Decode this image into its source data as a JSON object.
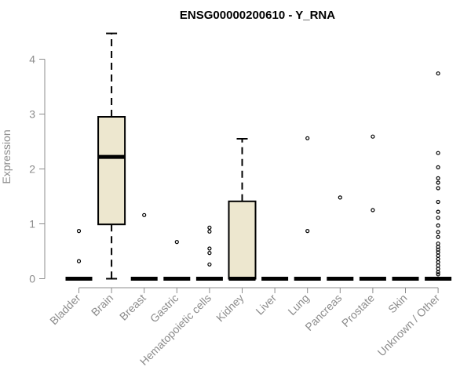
{
  "chart_data": {
    "type": "box",
    "title": "ENSG00000200610 - Y_RNA",
    "ylabel": "Expression",
    "xlabel": "",
    "ylim": [
      0,
      4.5
    ],
    "yticks": [
      0,
      1,
      2,
      3,
      4
    ],
    "categories": [
      "Bladder",
      "Brain",
      "Breast",
      "Gastric",
      "Hematopoietic cells",
      "Kidney",
      "Liver",
      "Lung",
      "Pancreas",
      "Prostate",
      "Skin",
      "Unknown / Other"
    ],
    "box_fill": "#ede7cf",
    "boxes": [
      {
        "category": "Bladder",
        "min": 0,
        "q1": 0,
        "median": 0,
        "q3": 0,
        "max": 0,
        "outliers": [
          0.87,
          0.32
        ]
      },
      {
        "category": "Brain",
        "min": 0,
        "q1": 0.99,
        "median": 2.22,
        "q3": 2.95,
        "max": 4.47,
        "outliers": []
      },
      {
        "category": "Breast",
        "min": 0,
        "q1": 0,
        "median": 0,
        "q3": 0,
        "max": 0,
        "outliers": [
          1.16
        ]
      },
      {
        "category": "Gastric",
        "min": 0,
        "q1": 0,
        "median": 0,
        "q3": 0,
        "max": 0,
        "outliers": [
          0.67
        ]
      },
      {
        "category": "Hematopoietic cells",
        "min": 0,
        "q1": 0,
        "median": 0,
        "q3": 0,
        "max": 0,
        "outliers": [
          0.93,
          0.86,
          0.55,
          0.47,
          0.26
        ]
      },
      {
        "category": "Kidney",
        "min": 0,
        "q1": 0,
        "median": 0,
        "q3": 1.41,
        "max": 2.55,
        "outliers": []
      },
      {
        "category": "Liver",
        "min": 0,
        "q1": 0,
        "median": 0,
        "q3": 0,
        "max": 0,
        "outliers": []
      },
      {
        "category": "Lung",
        "min": 0,
        "q1": 0,
        "median": 0,
        "q3": 0,
        "max": 0,
        "outliers": [
          2.56,
          0.87
        ]
      },
      {
        "category": "Pancreas",
        "min": 0,
        "q1": 0,
        "median": 0,
        "q3": 0,
        "max": 0,
        "outliers": [
          1.48
        ]
      },
      {
        "category": "Prostate",
        "min": 0,
        "q1": 0,
        "median": 0,
        "q3": 0,
        "max": 0,
        "outliers": [
          2.59,
          1.25
        ]
      },
      {
        "category": "Skin",
        "min": 0,
        "q1": 0,
        "median": 0,
        "q3": 0,
        "max": 0,
        "outliers": []
      },
      {
        "category": "Unknown / Other",
        "min": 0,
        "q1": 0,
        "median": 0,
        "q3": 0,
        "max": 0,
        "outliers": [
          3.74,
          2.29,
          2.03,
          1.83,
          1.75,
          1.65,
          1.4,
          1.22,
          1.11,
          0.97,
          0.85,
          0.76,
          0.64,
          0.58,
          0.53,
          0.48,
          0.42,
          0.36,
          0.3,
          0.24,
          0.18,
          0.12,
          0.08
        ]
      }
    ]
  }
}
